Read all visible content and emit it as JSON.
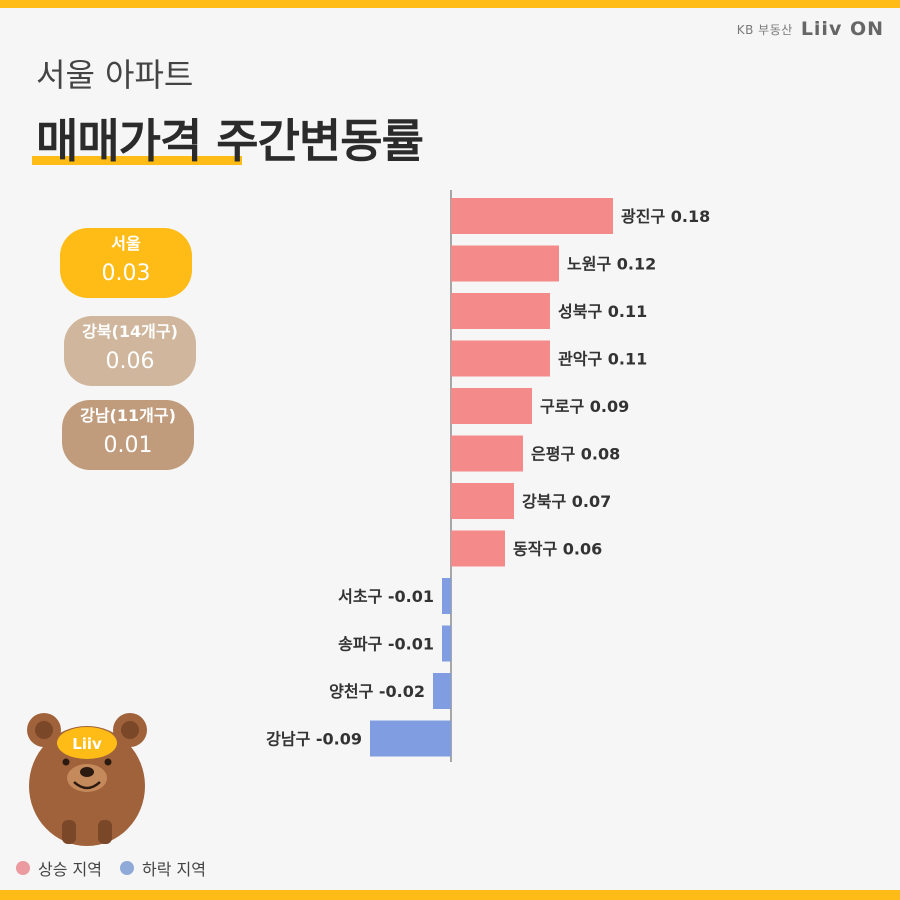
{
  "brand": {
    "kb": "KB 부동산",
    "liiv": "Liiv ON"
  },
  "header": {
    "subtitle": "서울 아파트",
    "title": "매매가격 주간변동률"
  },
  "summary": [
    {
      "label": "서울",
      "value": "0.03",
      "color": "#ffbc17"
    },
    {
      "label": "강북(14개구)",
      "value": "0.06",
      "color": "#cfb69c"
    },
    {
      "label": "강남(11개구)",
      "value": "0.01",
      "color": "#c19c7c"
    }
  ],
  "mascot": {
    "badge_text": "Liiv"
  },
  "legend": [
    {
      "label": "상승 지역",
      "color": "#eb9a9f"
    },
    {
      "label": "하락 지역",
      "color": "#8faad8"
    }
  ],
  "colors": {
    "rise": "#f58a8a",
    "fall": "#7f9de0",
    "accent": "#ffbc17"
  },
  "chart_data": {
    "type": "bar",
    "orientation": "horizontal",
    "categories": [
      "광진구",
      "노원구",
      "성북구",
      "관악구",
      "구로구",
      "은평구",
      "강북구",
      "동작구",
      "서초구",
      "송파구",
      "양천구",
      "강남구"
    ],
    "values": [
      0.18,
      0.12,
      0.11,
      0.11,
      0.09,
      0.08,
      0.07,
      0.06,
      -0.01,
      -0.01,
      -0.02,
      -0.09
    ],
    "data_labels": [
      "광진구 0.18",
      "노원구 0.12",
      "성북구 0.11",
      "관악구 0.11",
      "구로구 0.09",
      "은평구 0.08",
      "강북구 0.07",
      "동작구 0.06",
      "서초구 -0.01",
      "송파구 -0.01",
      "양천구 -0.02",
      "강남구 -0.09"
    ],
    "title": "",
    "xlabel": "",
    "ylabel": "",
    "grid": false
  }
}
